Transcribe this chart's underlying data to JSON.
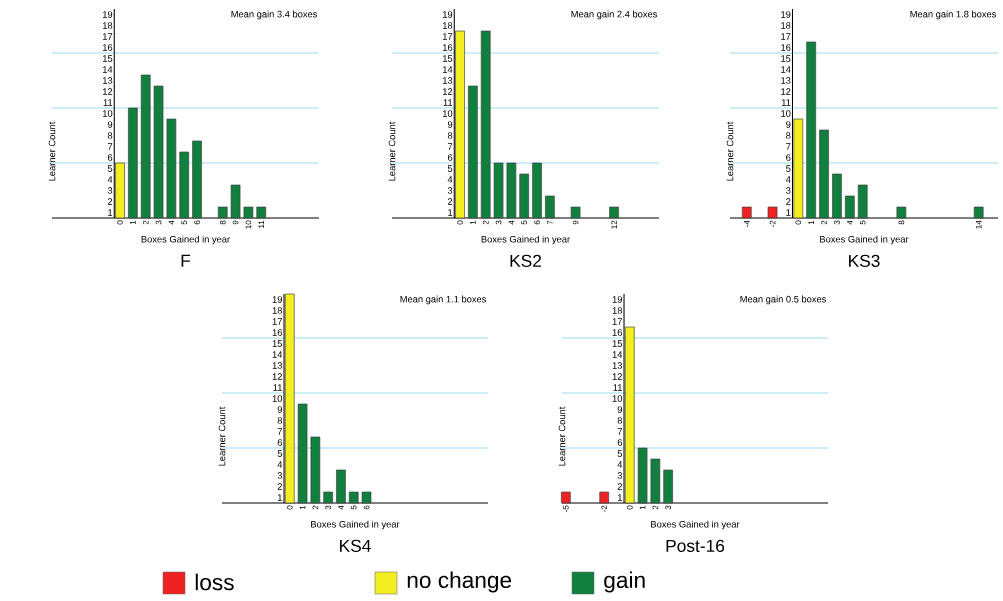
{
  "chart_data": [
    {
      "type": "bar",
      "title": "F",
      "xlabel": "Boxes Gained in year",
      "ylabel": "Learner Count",
      "annotations": [
        "Mean gain 3.4 boxes"
      ],
      "x": [
        0,
        1,
        2,
        3,
        4,
        5,
        6,
        8,
        9,
        10,
        11
      ],
      "values": [
        5,
        10,
        13,
        12,
        9,
        6,
        7,
        1,
        3,
        1,
        1
      ],
      "colors": [
        "#f2ee22",
        "#11803f",
        "#11803f",
        "#11803f",
        "#11803f",
        "#11803f",
        "#11803f",
        "#11803f",
        "#11803f",
        "#11803f",
        "#11803f"
      ],
      "xlim": [
        -5.3,
        15.5
      ],
      "ylim": [
        0,
        19
      ],
      "xticks": [
        0,
        1,
        2,
        3,
        4,
        5,
        6,
        8,
        9,
        10,
        11
      ],
      "yticks": [
        {
          "value": 0.5,
          "label": "1"
        },
        {
          "value": 1.5,
          "label": "2"
        },
        {
          "value": 2.5,
          "label": "3"
        },
        {
          "value": 3.5,
          "label": "4"
        },
        {
          "value": 4.5,
          "label": "5"
        },
        {
          "value": 5.5,
          "label": "6"
        },
        {
          "value": 6.5,
          "label": "7"
        },
        {
          "value": 7.5,
          "label": "8"
        },
        {
          "value": 8.5,
          "label": "9"
        },
        {
          "value": 9.5,
          "label": "10"
        },
        {
          "value": 10.5,
          "label": "11"
        },
        {
          "value": 11.5,
          "label": "12"
        },
        {
          "value": 12.5,
          "label": "13"
        },
        {
          "value": 13.5,
          "label": "14"
        },
        {
          "value": 14.5,
          "label": "15"
        },
        {
          "value": 15.5,
          "label": "16"
        },
        {
          "value": 16.5,
          "label": "17"
        },
        {
          "value": 17.5,
          "label": "18"
        },
        {
          "value": 18.5,
          "label": "19"
        }
      ],
      "ref_lines": [
        {
          "axis": "y",
          "value": 5,
          "color": "#80d4e8"
        },
        {
          "axis": "y",
          "value": 10,
          "color": "#80d4e8"
        },
        {
          "axis": "y",
          "value": 15,
          "color": "#80d4e8"
        }
      ]
    },
    {
      "type": "bar",
      "title": "KS2",
      "xlabel": "Boxes Gained in year",
      "ylabel": "Learner Count",
      "annotations": [
        "Mean gain 2.4 boxes"
      ],
      "x": [
        0,
        1,
        2,
        3,
        4,
        5,
        6,
        7,
        9,
        12
      ],
      "values": [
        17,
        12,
        17,
        5,
        5,
        4,
        5,
        2,
        1,
        1
      ],
      "colors": [
        "#f2ee22",
        "#11803f",
        "#11803f",
        "#11803f",
        "#11803f",
        "#11803f",
        "#11803f",
        "#11803f",
        "#11803f",
        "#11803f"
      ],
      "xlim": [
        -5.3,
        15.5
      ],
      "ylim": [
        0,
        19
      ],
      "xticks": [
        0,
        1,
        2,
        3,
        4,
        5,
        6,
        7,
        9,
        12
      ],
      "yticks": [
        {
          "value": 0.5,
          "label": "1"
        },
        {
          "value": 1.5,
          "label": "2"
        },
        {
          "value": 2.5,
          "label": "3"
        },
        {
          "value": 3.5,
          "label": "4"
        },
        {
          "value": 4.5,
          "label": "5"
        },
        {
          "value": 5.5,
          "label": "6"
        },
        {
          "value": 6.5,
          "label": "7"
        },
        {
          "value": 7.5,
          "label": "8"
        },
        {
          "value": 8.5,
          "label": "9"
        },
        {
          "value": 9.5,
          "label": "10"
        },
        {
          "value": 10.5,
          "label": "11"
        },
        {
          "value": 11.5,
          "label": "12"
        },
        {
          "value": 12.5,
          "label": "13"
        },
        {
          "value": 13.5,
          "label": "14"
        },
        {
          "value": 14.5,
          "label": "15"
        },
        {
          "value": 15.5,
          "label": "16"
        },
        {
          "value": 16.5,
          "label": "17"
        },
        {
          "value": 17.5,
          "label": "18"
        },
        {
          "value": 18.5,
          "label": "19"
        }
      ],
      "ref_lines": [
        {
          "axis": "y",
          "value": 5,
          "color": "#80d4e8"
        },
        {
          "axis": "y",
          "value": 10,
          "color": "#80d4e8"
        },
        {
          "axis": "y",
          "value": 15,
          "color": "#80d4e8"
        }
      ]
    },
    {
      "type": "bar",
      "title": "KS3",
      "xlabel": "Boxes Gained in year",
      "ylabel": "Learner Count",
      "annotations": [
        "Mean gain 1.8 boxes"
      ],
      "x": [
        -4,
        -2,
        0,
        1,
        2,
        3,
        4,
        5,
        8,
        14
      ],
      "values": [
        1,
        1,
        9,
        16,
        8,
        4,
        2,
        3,
        1,
        1
      ],
      "colors": [
        "#ee2222",
        "#ee2222",
        "#f2ee22",
        "#11803f",
        "#11803f",
        "#11803f",
        "#11803f",
        "#11803f",
        "#11803f",
        "#11803f"
      ],
      "xlim": [
        -5.3,
        15.5
      ],
      "ylim": [
        0,
        19
      ],
      "xticks": [
        -4,
        -2,
        0,
        1,
        2,
        3,
        4,
        5,
        8,
        14
      ],
      "yticks": [
        {
          "value": 0.5,
          "label": "1"
        },
        {
          "value": 1.5,
          "label": "2"
        },
        {
          "value": 2.5,
          "label": "3"
        },
        {
          "value": 3.5,
          "label": "4"
        },
        {
          "value": 4.5,
          "label": "5"
        },
        {
          "value": 5.5,
          "label": "6"
        },
        {
          "value": 6.5,
          "label": "7"
        },
        {
          "value": 7.5,
          "label": "8"
        },
        {
          "value": 8.5,
          "label": "9"
        },
        {
          "value": 9.5,
          "label": "10"
        },
        {
          "value": 10.5,
          "label": "11"
        },
        {
          "value": 11.5,
          "label": "12"
        },
        {
          "value": 12.5,
          "label": "13"
        },
        {
          "value": 13.5,
          "label": "14"
        },
        {
          "value": 14.5,
          "label": "15"
        },
        {
          "value": 15.5,
          "label": "16"
        },
        {
          "value": 16.5,
          "label": "17"
        },
        {
          "value": 17.5,
          "label": "18"
        },
        {
          "value": 18.5,
          "label": "19"
        }
      ],
      "ref_lines": [
        {
          "axis": "y",
          "value": 5,
          "color": "#80d4e8"
        },
        {
          "axis": "y",
          "value": 10,
          "color": "#80d4e8"
        },
        {
          "axis": "y",
          "value": 15,
          "color": "#80d4e8"
        }
      ]
    },
    {
      "type": "bar",
      "title": "KS4",
      "xlabel": "Boxes Gained in year",
      "ylabel": "Learner Count",
      "annotations": [
        "Mean gain 1.1 boxes"
      ],
      "x": [
        0,
        1,
        2,
        3,
        4,
        5,
        6
      ],
      "values": [
        19,
        9,
        6,
        1,
        3,
        1,
        1
      ],
      "colors": [
        "#f2ee22",
        "#11803f",
        "#11803f",
        "#11803f",
        "#11803f",
        "#11803f",
        "#11803f"
      ],
      "xlim": [
        -5.3,
        15.5
      ],
      "ylim": [
        0,
        19
      ],
      "xticks": [
        0,
        1,
        2,
        3,
        4,
        5,
        6
      ],
      "yticks": [
        {
          "value": 0.5,
          "label": "1"
        },
        {
          "value": 1.5,
          "label": "2"
        },
        {
          "value": 2.5,
          "label": "3"
        },
        {
          "value": 3.5,
          "label": "4"
        },
        {
          "value": 4.5,
          "label": "5"
        },
        {
          "value": 5.5,
          "label": "6"
        },
        {
          "value": 6.5,
          "label": "7"
        },
        {
          "value": 7.5,
          "label": "8"
        },
        {
          "value": 8.5,
          "label": "9"
        },
        {
          "value": 9.5,
          "label": "10"
        },
        {
          "value": 10.5,
          "label": "11"
        },
        {
          "value": 11.5,
          "label": "12"
        },
        {
          "value": 12.5,
          "label": "13"
        },
        {
          "value": 13.5,
          "label": "14"
        },
        {
          "value": 14.5,
          "label": "15"
        },
        {
          "value": 15.5,
          "label": "16"
        },
        {
          "value": 16.5,
          "label": "17"
        },
        {
          "value": 17.5,
          "label": "18"
        },
        {
          "value": 18.5,
          "label": "19"
        }
      ],
      "ref_lines": [
        {
          "axis": "y",
          "value": 5,
          "color": "#80d4e8"
        },
        {
          "axis": "y",
          "value": 10,
          "color": "#80d4e8"
        },
        {
          "axis": "y",
          "value": 15,
          "color": "#80d4e8"
        }
      ]
    },
    {
      "type": "bar",
      "title": "Post-16",
      "xlabel": "Boxes Gained in year",
      "ylabel": "Learner Count",
      "annotations": [
        "Mean gain 0.5 boxes"
      ],
      "x": [
        -5,
        -2,
        0,
        1,
        2,
        3
      ],
      "values": [
        1,
        1,
        16,
        5,
        4,
        3
      ],
      "colors": [
        "#ee2222",
        "#ee2222",
        "#f2ee22",
        "#11803f",
        "#11803f",
        "#11803f"
      ],
      "xlim": [
        -5.3,
        15.5
      ],
      "ylim": [
        0,
        19
      ],
      "xticks": [
        -5,
        -2,
        0,
        1,
        2,
        3
      ],
      "yticks": [
        {
          "value": 0.5,
          "label": "1"
        },
        {
          "value": 1.5,
          "label": "2"
        },
        {
          "value": 2.5,
          "label": "3"
        },
        {
          "value": 3.5,
          "label": "4"
        },
        {
          "value": 4.5,
          "label": "5"
        },
        {
          "value": 5.5,
          "label": "6"
        },
        {
          "value": 6.5,
          "label": "7"
        },
        {
          "value": 7.5,
          "label": "8"
        },
        {
          "value": 8.5,
          "label": "9"
        },
        {
          "value": 9.5,
          "label": "10"
        },
        {
          "value": 10.5,
          "label": "11"
        },
        {
          "value": 11.5,
          "label": "12"
        },
        {
          "value": 12.5,
          "label": "13"
        },
        {
          "value": 13.5,
          "label": "14"
        },
        {
          "value": 14.5,
          "label": "15"
        },
        {
          "value": 15.5,
          "label": "16"
        },
        {
          "value": 16.5,
          "label": "17"
        },
        {
          "value": 17.5,
          "label": "18"
        },
        {
          "value": 18.5,
          "label": "19"
        }
      ],
      "ref_lines": [
        {
          "axis": "y",
          "value": 5,
          "color": "#80d4e8"
        },
        {
          "axis": "y",
          "value": 10,
          "color": "#80d4e8"
        },
        {
          "axis": "y",
          "value": 15,
          "color": "#80d4e8"
        }
      ]
    },
    {
      "type": "other",
      "categories": [
        "loss",
        "no change",
        "gain"
      ],
      "colors": [
        "#ee2222",
        "#f2ee22",
        "#11803f"
      ]
    }
  ]
}
